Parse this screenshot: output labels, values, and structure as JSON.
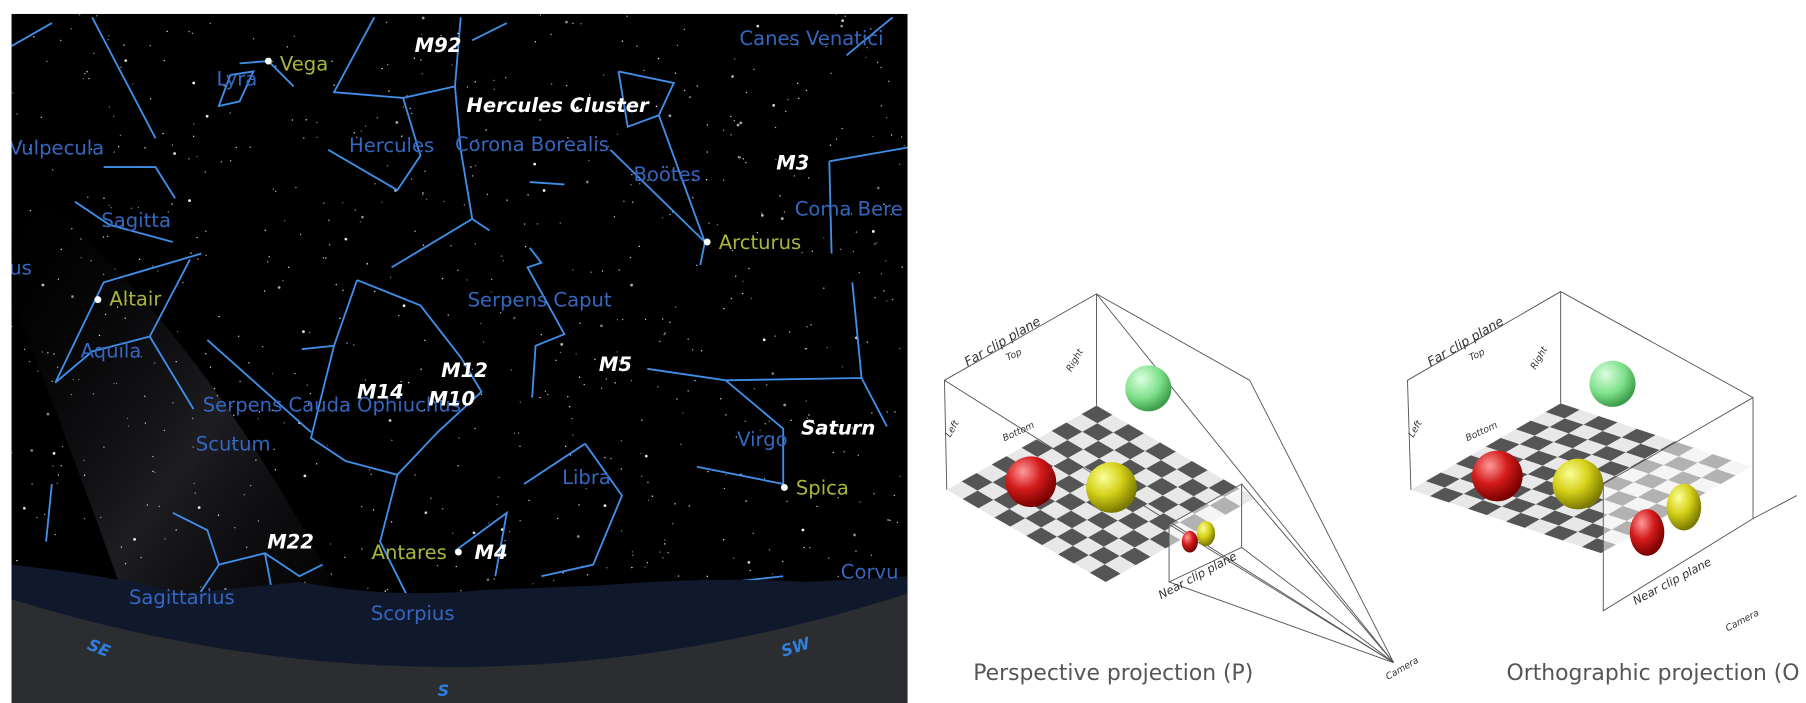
{
  "sky_map": {
    "constellations": [
      "Lyra",
      "Vulpecula",
      "Sagitta",
      "us",
      "Aquila",
      "Serpens Cauda",
      "Ophiuchus",
      "Scutum",
      "Sagittarius",
      "Scorpius",
      "Libra",
      "Virgo",
      "Serpens Caput",
      "Hercules",
      "Corona Borealis",
      "Boötes",
      "Coma Bere",
      "Canes Venatici",
      "Corvu"
    ],
    "stars": [
      "Vega",
      "Altair",
      "Arcturus",
      "Spica",
      "Antares"
    ],
    "objects": [
      "M92",
      "Hercules Cluster",
      "M3",
      "M12",
      "M14",
      "M10",
      "M5",
      "Saturn",
      "M22",
      "M4"
    ],
    "directions": [
      "SE",
      "S",
      "SW"
    ]
  },
  "diagrams": [
    {
      "far_clip_plane": "Far clip plane",
      "top": "Top",
      "right": "Right",
      "left": "Left",
      "bottom": "Bottom",
      "near_clip_plane": "Near clip plane",
      "camera": "Camera",
      "caption": "Perspective projection (P)"
    },
    {
      "far_clip_plane": "Far clip plane",
      "top": "Top",
      "right": "Right",
      "left": "Left",
      "bottom": "Bottom",
      "near_clip_plane": "Near clip plane",
      "camera": "Camera",
      "caption": "Orthographic projection (O"
    }
  ]
}
